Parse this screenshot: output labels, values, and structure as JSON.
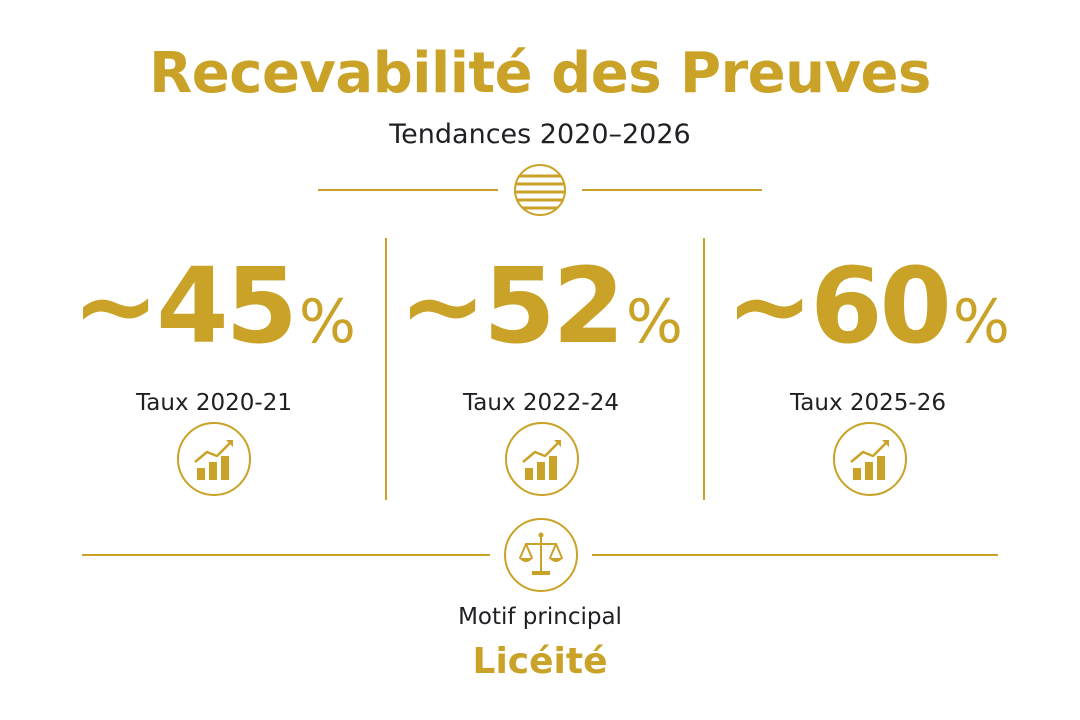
{
  "header": {
    "title": "Recevabilité des Preuves",
    "subtitle": "Tendances 2020–2026"
  },
  "stats": [
    {
      "value": "~45",
      "unit": "%",
      "label": "Taux 2020-21",
      "icon": "bar-chart-up-icon"
    },
    {
      "value": "~52",
      "unit": "%",
      "label": "Taux 2022-24",
      "icon": "bar-chart-up-icon"
    },
    {
      "value": "~60",
      "unit": "%",
      "label": "Taux 2025-26",
      "icon": "bar-chart-up-icon"
    }
  ],
  "footer": {
    "icon": "scales-of-justice-icon",
    "label": "Motif principal",
    "value": "Licéité"
  },
  "colors": {
    "accent": "#C9A227",
    "text": "#1f1f24",
    "background": "#ffffff"
  }
}
